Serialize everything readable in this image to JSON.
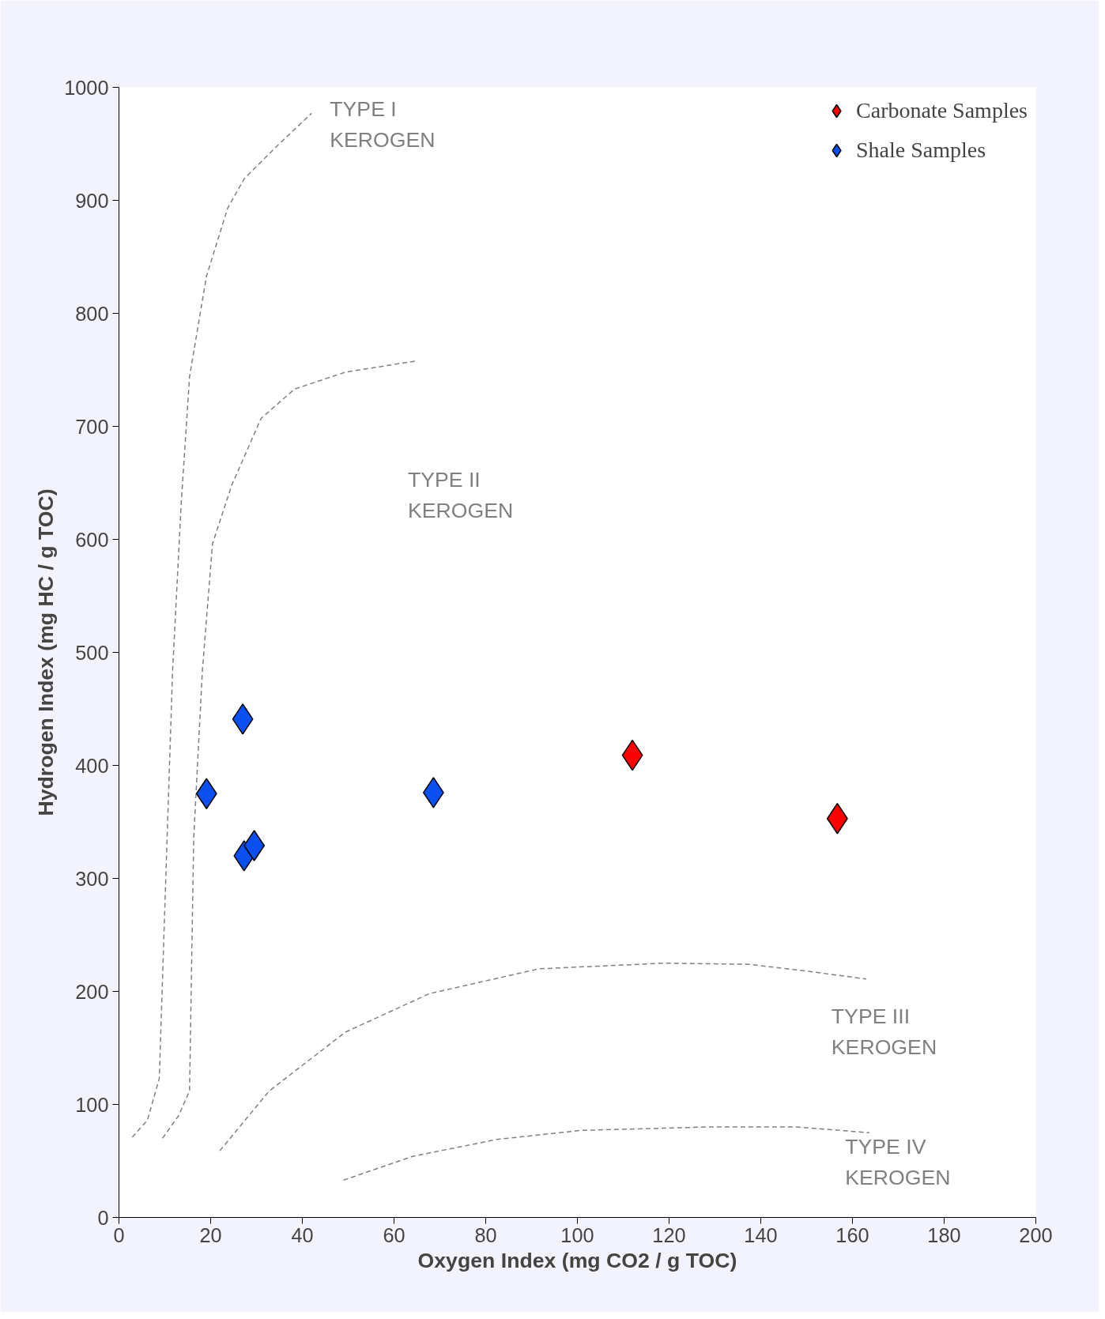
{
  "chart_data": {
    "type": "scatter",
    "xlabel": "Oxygen Index (mg CO2 / g TOC)",
    "ylabel": "Hydrogen Index (mg HC / g TOC)",
    "xlim": [
      0,
      200
    ],
    "ylim": [
      0,
      1000
    ],
    "xticks": [
      0,
      20,
      40,
      60,
      80,
      100,
      120,
      140,
      160,
      180,
      200
    ],
    "yticks": [
      0,
      100,
      200,
      300,
      400,
      500,
      600,
      700,
      800,
      900,
      1000
    ],
    "grid": false,
    "legend": "top right",
    "series": [
      {
        "type": "line",
        "color": "#808080",
        "line_style": "dashed",
        "x": [
          2.9,
          6.2,
          8.8,
          9.9,
          11.7,
          13.6,
          15.4,
          19.1,
          23.7,
          27.3,
          34.7,
          42
        ],
        "values": [
          71,
          86,
          123,
          261,
          484,
          633,
          744,
          833,
          893,
          919,
          949,
          977
        ]
      },
      {
        "type": "line",
        "color": "#808080",
        "line_style": "dashed",
        "x": [
          9.5,
          13,
          15.4,
          16.3,
          18.2,
          20.4,
          24.6,
          31,
          38.3,
          49.4,
          65
        ],
        "values": [
          70,
          90,
          112,
          335,
          484,
          596,
          648,
          707,
          733,
          748,
          758
        ]
      },
      {
        "type": "line",
        "color": "#808080",
        "line_style": "dashed",
        "x": [
          22,
          32.8,
          49.4,
          67.7,
          91.6,
          119,
          137.4,
          150,
          163
        ],
        "values": [
          59,
          112,
          164,
          198,
          220,
          225,
          224,
          218,
          211
        ]
      },
      {
        "type": "line",
        "color": "#808080",
        "line_style": "dashed",
        "x": [
          49,
          64,
          82.4,
          100.7,
          128,
          148,
          163.7
        ],
        "values": [
          33,
          54,
          69,
          77,
          80,
          80,
          75
        ]
      },
      {
        "marker": "diamond",
        "name": "Carbonate Samples",
        "color": "#ff0000",
        "x": [
          112,
          156.7
        ],
        "values": [
          409,
          353
        ]
      },
      {
        "marker": "diamond",
        "name": "Shale Samples",
        "color": "#0b4ff0",
        "x": [
          27,
          19.1,
          27.3,
          29.5,
          68.6
        ],
        "values": [
          441,
          375,
          320,
          329,
          376
        ]
      }
    ],
    "annotations": [
      "TYPE I\nKEROGEN",
      "TYPE II\nKEROGEN",
      "TYPE III\nKEROGEN",
      "TYPE IV\nKEROGEN"
    ]
  }
}
